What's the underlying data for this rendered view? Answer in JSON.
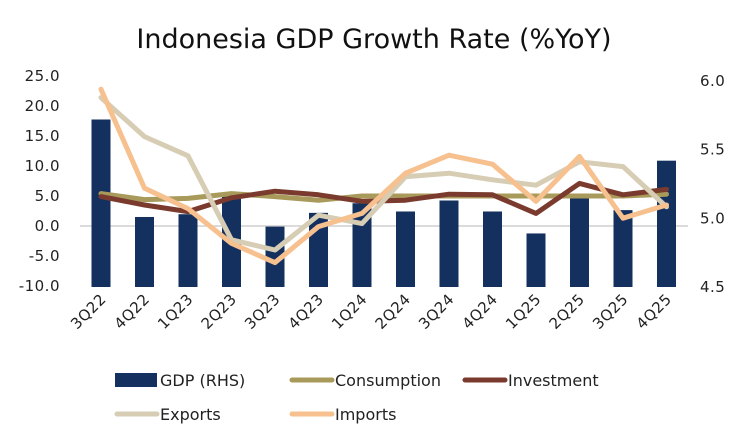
{
  "chart_data": {
    "type": "bar+line",
    "title": "Indonesia GDP Growth Rate (%YoY)",
    "categories": [
      "3Q22",
      "4Q22",
      "1Q23",
      "2Q23",
      "3Q23",
      "4Q23",
      "1Q24",
      "2Q24",
      "3Q24",
      "4Q24",
      "1Q25",
      "2Q25",
      "3Q25",
      "4Q25"
    ],
    "left_axis": {
      "ylim": [
        -10,
        25
      ],
      "ticks": [
        "25.0",
        "20.0",
        "15.0",
        "10.0",
        "5.0",
        "0.0",
        "-5.0",
        "-10.0"
      ],
      "tick_values": [
        25,
        20,
        15,
        10,
        5,
        0,
        -5,
        -10
      ]
    },
    "right_axis": {
      "ylim": [
        4.5,
        6.0
      ],
      "ticks": [
        "6.0",
        "5.5",
        "5.0",
        "4.5"
      ],
      "tick_values": [
        6.0,
        5.5,
        5.0,
        4.5
      ]
    },
    "series": [
      {
        "name": "GDP (RHS)",
        "type": "bar",
        "axis": "right",
        "color": "#14305e",
        "values": [
          5.72,
          5.01,
          5.03,
          5.17,
          4.94,
          5.04,
          5.11,
          5.05,
          5.13,
          5.05,
          4.89,
          5.15,
          5.06,
          5.42
        ]
      },
      {
        "name": "Consumption",
        "type": "line",
        "axis": "left",
        "color": "#a89a5a",
        "values": [
          5.4,
          4.4,
          4.6,
          5.4,
          4.9,
          4.3,
          5.0,
          5.0,
          5.0,
          5.0,
          5.0,
          5.0,
          5.0,
          5.3
        ]
      },
      {
        "name": "Investment",
        "type": "line",
        "axis": "left",
        "color": "#7a3b2e",
        "values": [
          4.9,
          3.5,
          2.4,
          4.7,
          5.8,
          5.2,
          4.1,
          4.3,
          5.3,
          5.2,
          2.1,
          7.1,
          5.2,
          6.1
        ]
      },
      {
        "name": "Exports",
        "type": "line",
        "axis": "left",
        "color": "#d6cdb4",
        "values": [
          21.4,
          14.9,
          11.7,
          -2.3,
          -4.0,
          1.8,
          0.4,
          8.2,
          8.8,
          7.7,
          6.8,
          10.7,
          9.9,
          3.2
        ]
      },
      {
        "name": "Imports",
        "type": "line",
        "axis": "left",
        "color": "#f7c08f",
        "values": [
          22.8,
          6.3,
          2.9,
          -2.9,
          -6.1,
          -0.1,
          2.1,
          8.8,
          11.8,
          10.3,
          4.1,
          11.6,
          1.3,
          3.5
        ]
      }
    ],
    "legend_position": "bottom",
    "grid": false
  }
}
